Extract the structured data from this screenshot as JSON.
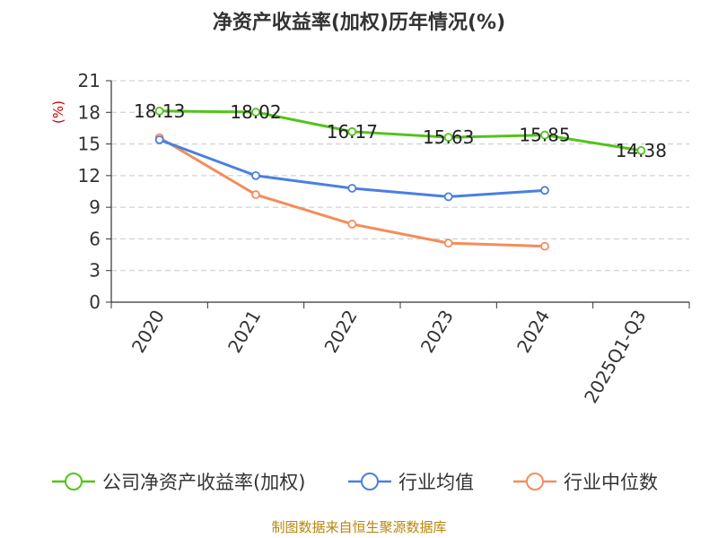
{
  "chart_data": {
    "type": "line",
    "title": "净资产收益率(加权)历年情况(%)",
    "ylabel": "(%)",
    "xlabel": "",
    "ylim": [
      0,
      21
    ],
    "yticks": [
      0,
      3,
      6,
      9,
      12,
      15,
      18,
      21
    ],
    "grid": true,
    "legend_position": "bottom",
    "categories": [
      "2020",
      "2021",
      "2022",
      "2023",
      "2024",
      "2025Q1-Q3"
    ],
    "series": [
      {
        "name": "公司净资产收益率(加权)",
        "color": "#52c41a",
        "values": [
          18.13,
          18.02,
          16.17,
          15.63,
          15.85,
          14.38
        ],
        "labels": [
          "18.13",
          "18.02",
          "16.17",
          "15.63",
          "15.85",
          "14.38"
        ]
      },
      {
        "name": "行业均值",
        "color": "#4a7fe0",
        "values": [
          15.4,
          12.0,
          10.8,
          10.0,
          10.6,
          null
        ]
      },
      {
        "name": "行业中位数",
        "color": "#f58c5a",
        "values": [
          15.6,
          10.2,
          7.4,
          5.6,
          5.3,
          null
        ]
      }
    ]
  },
  "footer": "制图数据来自恒生聚源数据库"
}
